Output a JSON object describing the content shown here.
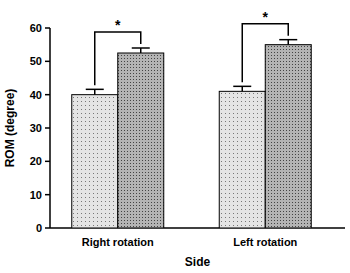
{
  "chart_data": {
    "type": "bar",
    "x_label": "Side",
    "y_label": "ROM (degree)",
    "categories": [
      "Right rotation",
      "Left rotation"
    ],
    "series": [
      {
        "color": "#e4e4e4",
        "values": [
          40,
          41
        ],
        "errors": [
          1.6,
          1.5
        ]
      },
      {
        "color": "#b4b4b4",
        "values": [
          52.5,
          55
        ],
        "errors": [
          1.5,
          1.5
        ]
      }
    ],
    "annotations": [
      "*",
      "*"
    ],
    "ylim": [
      0,
      60
    ],
    "yticks": [
      0,
      10,
      20,
      30,
      40,
      50,
      60
    ],
    "grid": false
  }
}
